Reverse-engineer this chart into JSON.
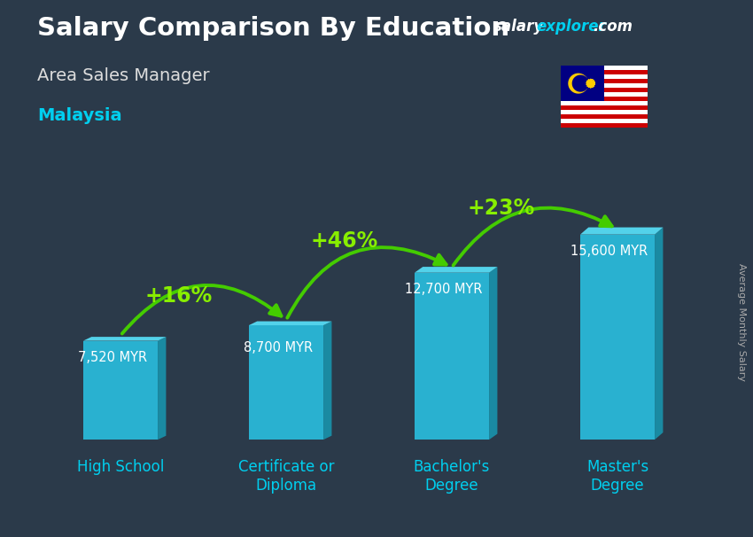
{
  "title": "Salary Comparison By Education",
  "subtitle": "Area Sales Manager",
  "country": "Malaysia",
  "ylabel": "Average Monthly Salary",
  "categories": [
    "High School",
    "Certificate or\nDiploma",
    "Bachelor's\nDegree",
    "Master's\nDegree"
  ],
  "values": [
    7520,
    8700,
    12700,
    15600
  ],
  "value_labels": [
    "7,520 MYR",
    "8,700 MYR",
    "12,700 MYR",
    "15,600 MYR"
  ],
  "pct_changes": [
    "+16%",
    "+46%",
    "+23%"
  ],
  "bar_face_color": "#29b8d8",
  "bar_side_color": "#1a8fa8",
  "bar_top_color": "#55d8f0",
  "pct_color": "#88ee00",
  "arrow_color": "#44cc00",
  "label_color": "#ffffff",
  "title_color": "#ffffff",
  "subtitle_color": "#dddddd",
  "country_color": "#00cfef",
  "bg_color": "#2b3a4a",
  "watermark_salary_color": "#ffffff",
  "watermark_explorer_color": "#00cfef",
  "watermark_com_color": "#ffffff",
  "ylabel_color": "#aaaaaa",
  "xtick_color": "#00cfef",
  "figsize": [
    8.5,
    6.06
  ],
  "dpi": 100
}
